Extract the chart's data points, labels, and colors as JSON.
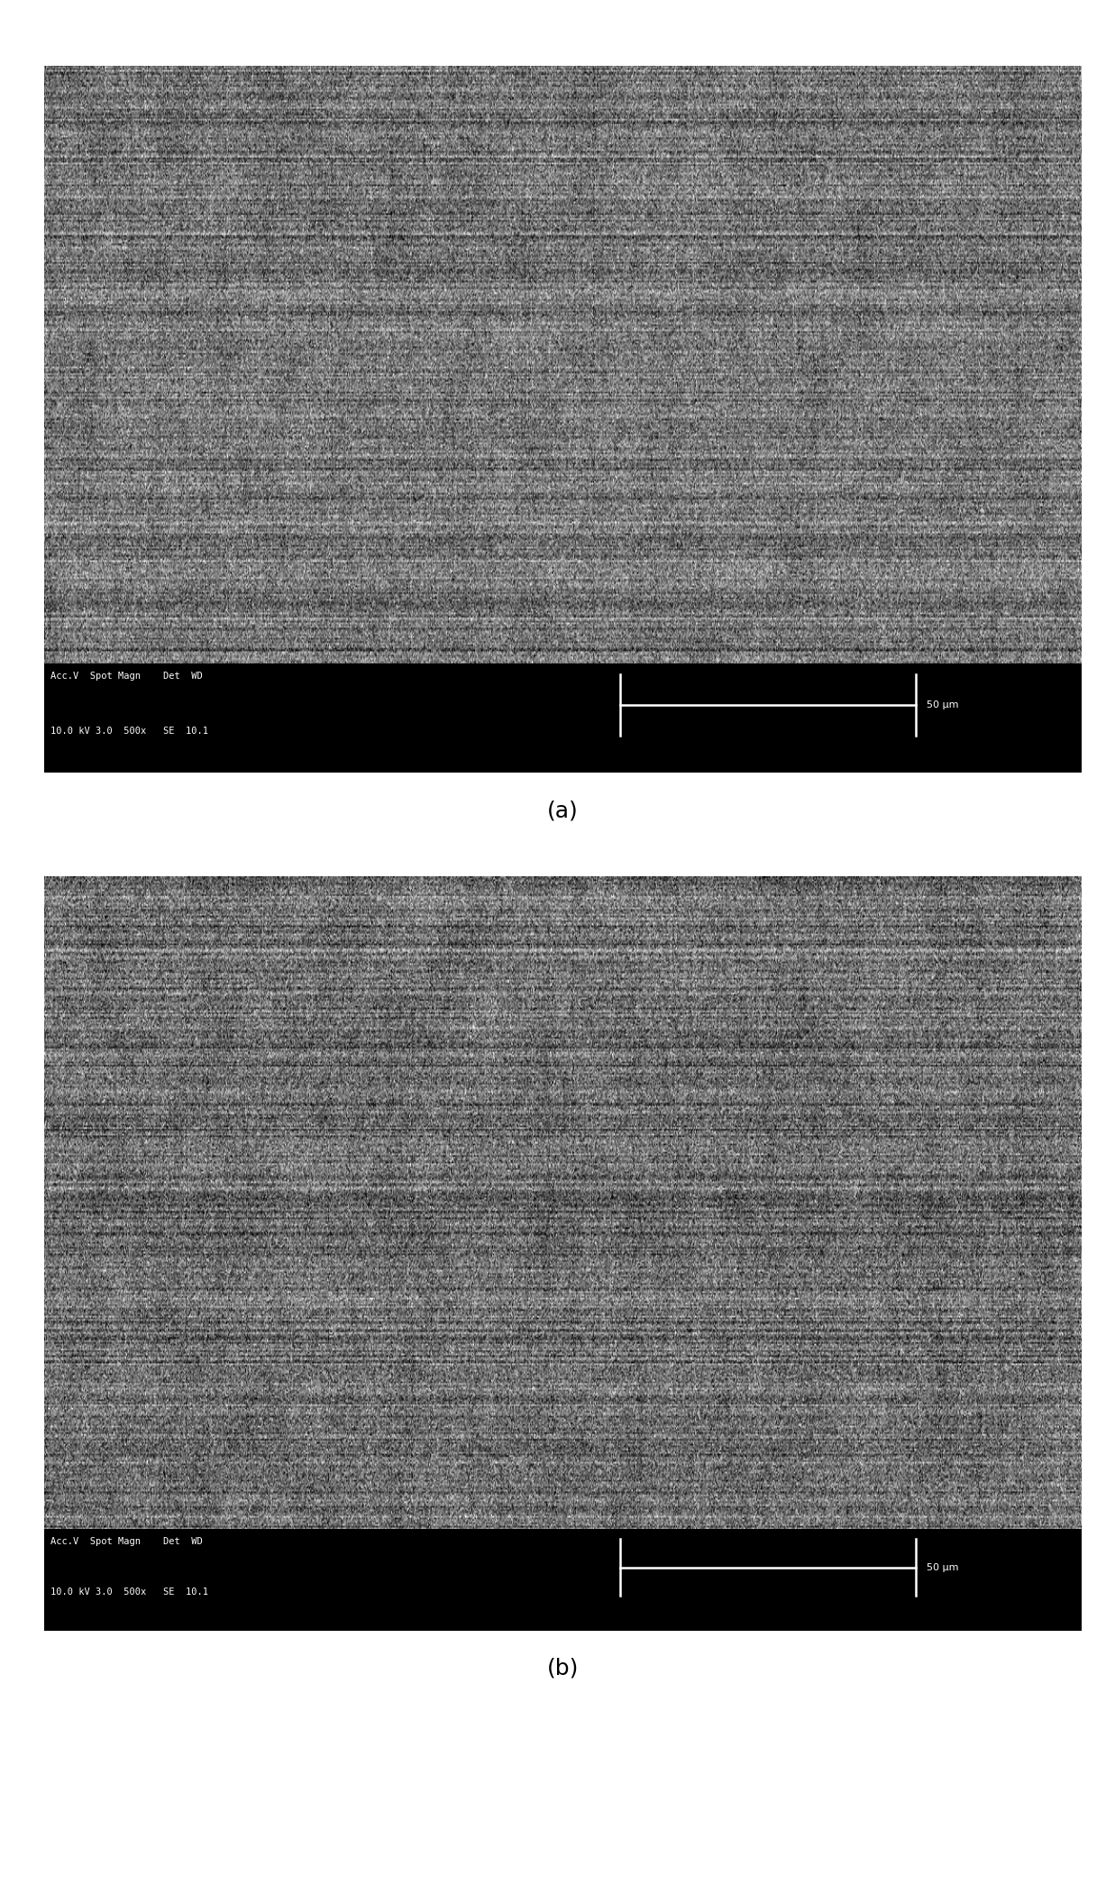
{
  "fig_width": 12.37,
  "fig_height": 20.91,
  "dpi": 100,
  "bg_color": "#ffffff",
  "panel_a": {
    "label": "(a)",
    "info_bar1": "Acc.V  Spot Magn    Det  WD",
    "info_bar2": "10.0 kV 3.0  500x   SE  10.1",
    "scale_label": "50 μm",
    "noise_seed": 42,
    "noise_mean": 118,
    "noise_std": 40
  },
  "panel_b": {
    "label": "(b)",
    "info_bar1": "Acc.V  Spot Magn    Det  WD",
    "info_bar2": "10.0 kV 3.0  500x   SE  10.1",
    "scale_label": "50 μm",
    "noise_seed": 123,
    "noise_mean": 112,
    "noise_std": 42
  },
  "infobar_color": "#000000",
  "infobar_text_color": "#ffffff",
  "label_fontsize": 18,
  "info_fontsize": 9
}
